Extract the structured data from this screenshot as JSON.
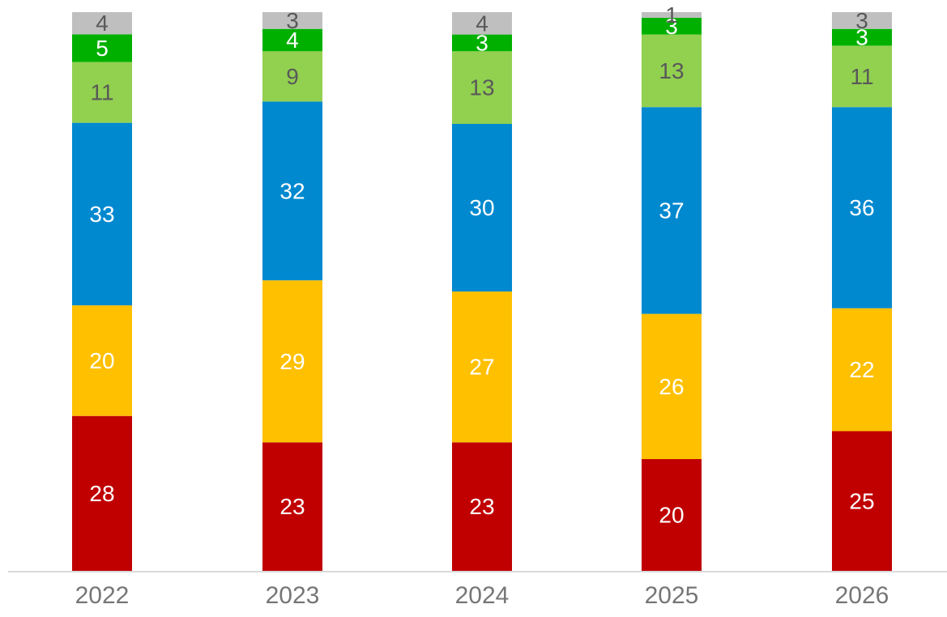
{
  "chart_data": {
    "type": "bar",
    "stacked": true,
    "categories": [
      "2022",
      "2023",
      "2024",
      "2025",
      "2026"
    ],
    "series": [
      {
        "color": "#C00000",
        "label_color": "#ffffff",
        "values": [
          28,
          23,
          23,
          20,
          25
        ]
      },
      {
        "color": "#FFC000",
        "label_color": "#ffffff",
        "values": [
          20,
          29,
          27,
          26,
          22
        ]
      },
      {
        "color": "#0089CF",
        "label_color": "#ffffff",
        "values": [
          33,
          32,
          30,
          37,
          36
        ]
      },
      {
        "color": "#92D050",
        "label_color": "#595959",
        "values": [
          11,
          9,
          13,
          13,
          11
        ]
      },
      {
        "color": "#00B000",
        "label_color": "#ffffff",
        "values": [
          5,
          4,
          3,
          3,
          3
        ]
      },
      {
        "color": "#BFBFBF",
        "label_color": "#595959",
        "values": [
          4,
          3,
          4,
          1,
          3
        ]
      }
    ],
    "ylim": [
      0,
      100
    ],
    "grid": false,
    "legend": "none",
    "axis_line_color": "#D9D9D9",
    "tick_label_color": "#767676"
  }
}
